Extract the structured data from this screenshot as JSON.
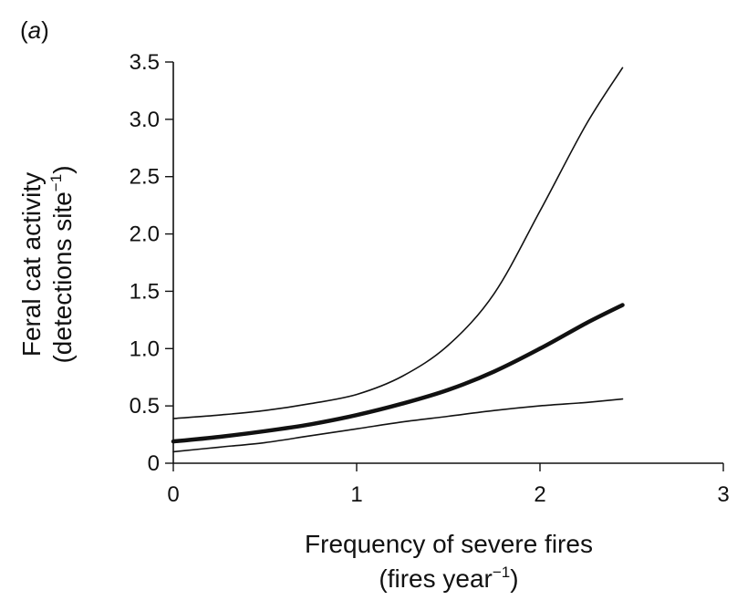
{
  "chart_data": {
    "type": "line",
    "panel_label": "(a)",
    "panel_label_letter": "a",
    "xlabel": {
      "line1": "Frequency of severe fires",
      "line2_prefix": "(fires year",
      "line2_sup": "−1",
      "line2_suffix": ")"
    },
    "ylabel": {
      "line1": "Feral cat activity",
      "line2_prefix": "(detections site",
      "line2_sup": "−1",
      "line2_suffix": ")"
    },
    "xlim": [
      0,
      3
    ],
    "ylim": [
      0,
      3.5
    ],
    "x_ticks": [
      0,
      1,
      2,
      3
    ],
    "x_tick_labels": [
      "0",
      "1",
      "2",
      "3"
    ],
    "y_ticks": [
      0,
      0.5,
      1.0,
      1.5,
      2.0,
      2.5,
      3.0,
      3.5
    ],
    "y_tick_labels": [
      "0",
      "0.5",
      "1.0",
      "1.5",
      "2.0",
      "2.5",
      "3.0",
      "3.5"
    ],
    "grid": false,
    "x": [
      0,
      0.25,
      0.5,
      0.75,
      1.0,
      1.25,
      1.5,
      1.75,
      2.0,
      2.25,
      2.45
    ],
    "series": [
      {
        "role": "upper-ci",
        "style": "thin",
        "values": [
          0.39,
          0.42,
          0.46,
          0.52,
          0.6,
          0.76,
          1.03,
          1.48,
          2.2,
          2.95,
          3.45
        ]
      },
      {
        "role": "estimate",
        "style": "thick",
        "values": [
          0.19,
          0.23,
          0.28,
          0.34,
          0.42,
          0.52,
          0.64,
          0.8,
          1.0,
          1.22,
          1.38
        ]
      },
      {
        "role": "lower-ci",
        "style": "thin",
        "values": [
          0.1,
          0.14,
          0.18,
          0.24,
          0.3,
          0.36,
          0.41,
          0.46,
          0.5,
          0.53,
          0.56
        ]
      }
    ],
    "colors": {
      "line": "#111111",
      "axis": "#111111"
    }
  }
}
